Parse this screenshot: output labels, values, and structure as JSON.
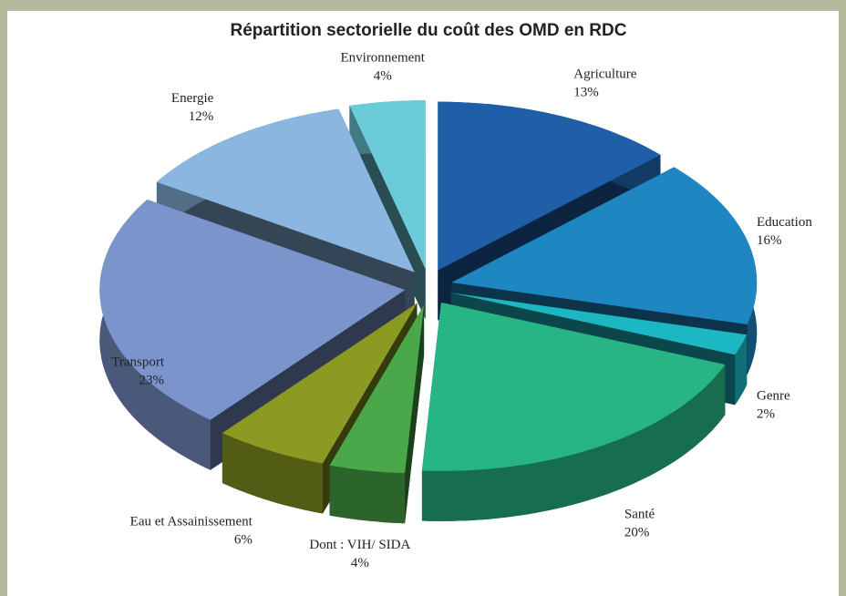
{
  "chart_data": {
    "type": "pie3d",
    "title": "Répartition sectorielle du coût des OMD en RDC",
    "categories": [
      "Agriculture",
      "Education",
      "Genre",
      "Santé",
      "Dont : VIH/ SIDA",
      "Eau et Assainissement",
      "Transport",
      "Energie",
      "Environnement"
    ],
    "values": [
      13,
      16,
      2,
      20,
      4,
      6,
      23,
      12,
      4
    ],
    "value_labels": [
      "13%",
      "16%",
      "2%",
      "20%",
      "4%",
      "6%",
      "23%",
      "12%",
      "4%"
    ],
    "colors": [
      "#1f5fa8",
      "#1e86c0",
      "#1bb8c4",
      "#27b586",
      "#4aa84a",
      "#8a9a22",
      "#7b95cc",
      "#8ab6e0",
      "#6ccbd9"
    ]
  }
}
